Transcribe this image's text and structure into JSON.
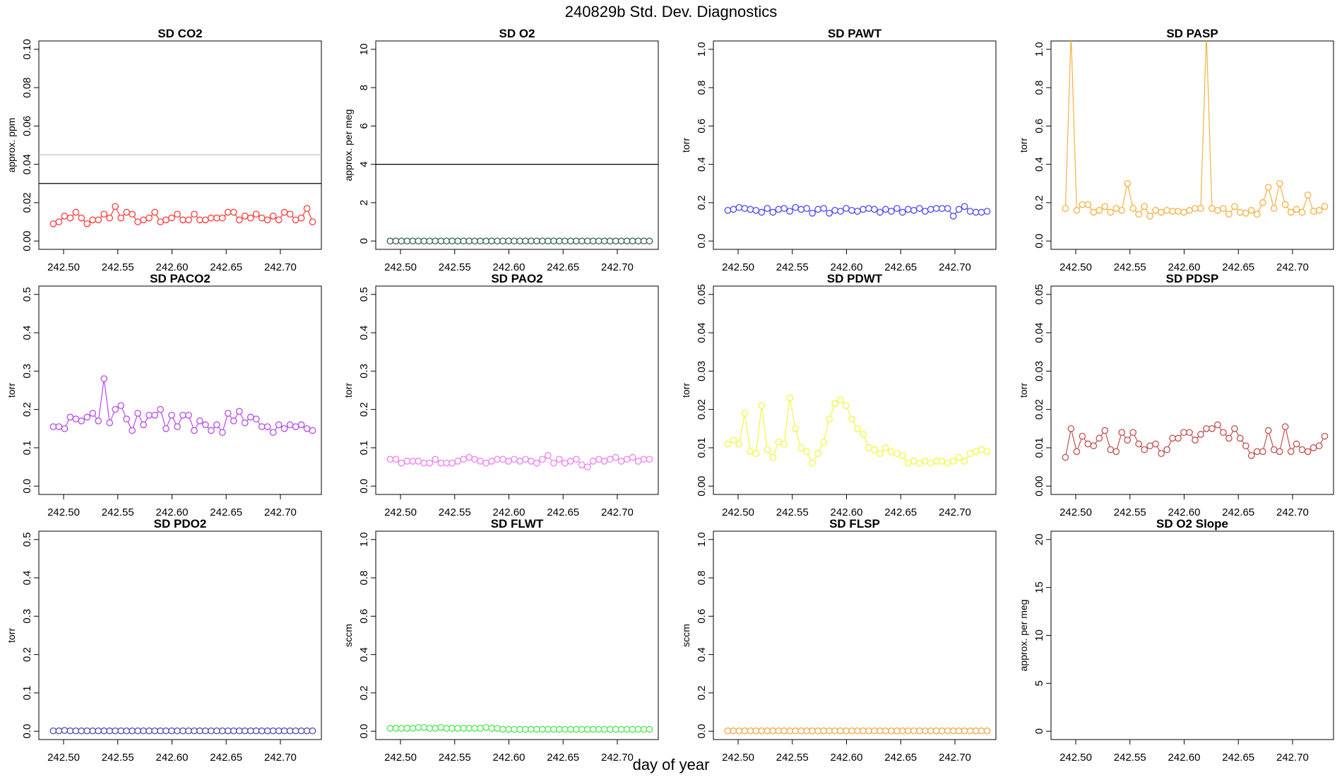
{
  "page": {
    "title": "240829b   Std. Dev. Diagnostics",
    "xlabel": "day of year"
  },
  "chart_data": [
    {
      "type": "scatter",
      "title": "SD CO2",
      "ylabel": "approx. ppm",
      "xlim": [
        242.485,
        242.73
      ],
      "ylim": [
        0,
        0.1
      ],
      "yticks": [
        "0.00",
        "0.02",
        "0.04",
        "0.06",
        "0.08",
        "0.10"
      ],
      "xticks": [
        "242.50",
        "242.55",
        "242.60",
        "242.65",
        "242.70"
      ],
      "color": "#ff3b3b",
      "connected": true,
      "hlines": [
        {
          "y": 0.03,
          "color": "#000000"
        },
        {
          "y": 0.045,
          "color": "#bbbbbb"
        }
      ],
      "values": [
        0.009,
        0.01,
        0.013,
        0.012,
        0.015,
        0.012,
        0.009,
        0.011,
        0.011,
        0.014,
        0.012,
        0.018,
        0.012,
        0.015,
        0.014,
        0.01,
        0.011,
        0.012,
        0.015,
        0.01,
        0.011,
        0.012,
        0.014,
        0.011,
        0.011,
        0.014,
        0.011,
        0.011,
        0.012,
        0.012,
        0.012,
        0.015,
        0.015,
        0.011,
        0.013,
        0.012,
        0.014,
        0.012,
        0.011,
        0.013,
        0.011,
        0.015,
        0.014,
        0.011,
        0.012,
        0.017,
        0.01
      ]
    },
    {
      "type": "scatter",
      "title": "SD O2",
      "ylabel": "approx. per meg",
      "xlim": [
        242.485,
        242.73
      ],
      "ylim": [
        0,
        10
      ],
      "yticks": [
        "0",
        "2",
        "4",
        "6",
        "8",
        "10"
      ],
      "xticks": [
        "242.50",
        "242.55",
        "242.60",
        "242.65",
        "242.70"
      ],
      "color": "#2f5f4a",
      "connected": true,
      "hlines": [
        {
          "y": 4,
          "color": "#000000"
        }
      ],
      "values": [
        0,
        0,
        0,
        0,
        0,
        0,
        0,
        0,
        0,
        0,
        0,
        0,
        0,
        0,
        0,
        0,
        0,
        0,
        0,
        0,
        0,
        0,
        0,
        0,
        0,
        0,
        0,
        0,
        0,
        0,
        0,
        0,
        0,
        0,
        0,
        0,
        0,
        0,
        0,
        0,
        0,
        0,
        0,
        0,
        0,
        0,
        0
      ]
    },
    {
      "type": "scatter",
      "title": "SD PAWT",
      "ylabel": "torr",
      "xlim": [
        242.485,
        242.73
      ],
      "ylim": [
        0,
        1
      ],
      "yticks": [
        "0.0",
        "0.2",
        "0.4",
        "0.6",
        "0.8",
        "1.0"
      ],
      "xticks": [
        "242.50",
        "242.55",
        "242.60",
        "242.65",
        "242.70"
      ],
      "color": "#4a4af0",
      "connected": true,
      "hlines": [],
      "values": [
        0.16,
        0.165,
        0.175,
        0.17,
        0.165,
        0.16,
        0.15,
        0.17,
        0.15,
        0.165,
        0.17,
        0.155,
        0.175,
        0.165,
        0.17,
        0.145,
        0.165,
        0.17,
        0.145,
        0.16,
        0.155,
        0.17,
        0.16,
        0.155,
        0.165,
        0.17,
        0.165,
        0.15,
        0.165,
        0.155,
        0.17,
        0.15,
        0.165,
        0.16,
        0.17,
        0.155,
        0.165,
        0.17,
        0.17,
        0.17,
        0.13,
        0.165,
        0.18,
        0.155,
        0.15,
        0.15,
        0.155
      ]
    },
    {
      "type": "scatter",
      "title": "SD PASP",
      "ylabel": "torr",
      "xlim": [
        242.485,
        242.73
      ],
      "ylim": [
        0,
        1
      ],
      "yticks": [
        "0.0",
        "0.2",
        "0.4",
        "0.6",
        "0.8",
        "1.0"
      ],
      "xticks": [
        "242.50",
        "242.55",
        "242.60",
        "242.65",
        "242.70"
      ],
      "color": "#f5b041",
      "connected": true,
      "hlines": [],
      "values": [
        0.17,
        1.1,
        0.16,
        0.19,
        0.19,
        0.15,
        0.16,
        0.18,
        0.15,
        0.17,
        0.16,
        0.3,
        0.17,
        0.14,
        0.18,
        0.13,
        0.16,
        0.15,
        0.16,
        0.155,
        0.155,
        0.15,
        0.16,
        0.17,
        0.17,
        1.1,
        0.17,
        0.16,
        0.17,
        0.14,
        0.18,
        0.15,
        0.145,
        0.16,
        0.14,
        0.2,
        0.28,
        0.17,
        0.3,
        0.19,
        0.15,
        0.165,
        0.15,
        0.24,
        0.155,
        0.16,
        0.18
      ]
    },
    {
      "type": "scatter",
      "title": "SD PACO2",
      "ylabel": "torr",
      "xlim": [
        242.485,
        242.73
      ],
      "ylim": [
        0,
        0.5
      ],
      "yticks": [
        "0.0",
        "0.1",
        "0.2",
        "0.3",
        "0.4",
        "0.5"
      ],
      "xticks": [
        "242.50",
        "242.55",
        "242.60",
        "242.65",
        "242.70"
      ],
      "color": "#b64ae8",
      "connected": true,
      "hlines": [],
      "values": [
        0.155,
        0.155,
        0.15,
        0.18,
        0.175,
        0.17,
        0.18,
        0.19,
        0.17,
        0.28,
        0.165,
        0.2,
        0.21,
        0.175,
        0.145,
        0.19,
        0.16,
        0.185,
        0.185,
        0.2,
        0.15,
        0.185,
        0.155,
        0.185,
        0.185,
        0.145,
        0.17,
        0.16,
        0.145,
        0.16,
        0.14,
        0.19,
        0.17,
        0.195,
        0.165,
        0.18,
        0.175,
        0.155,
        0.155,
        0.14,
        0.16,
        0.15,
        0.16,
        0.155,
        0.16,
        0.15,
        0.145
      ]
    },
    {
      "type": "scatter",
      "title": "SD PAO2",
      "ylabel": "torr",
      "xlim": [
        242.485,
        242.73
      ],
      "ylim": [
        0,
        0.5
      ],
      "yticks": [
        "0.0",
        "0.1",
        "0.2",
        "0.3",
        "0.4",
        "0.5"
      ],
      "xticks": [
        "242.50",
        "242.55",
        "242.60",
        "242.65",
        "242.70"
      ],
      "color": "#f07ef0",
      "connected": true,
      "hlines": [],
      "values": [
        0.07,
        0.07,
        0.06,
        0.065,
        0.065,
        0.065,
        0.06,
        0.06,
        0.07,
        0.06,
        0.06,
        0.06,
        0.065,
        0.07,
        0.075,
        0.07,
        0.065,
        0.06,
        0.065,
        0.07,
        0.07,
        0.065,
        0.07,
        0.065,
        0.07,
        0.065,
        0.06,
        0.07,
        0.08,
        0.06,
        0.07,
        0.06,
        0.065,
        0.07,
        0.055,
        0.05,
        0.065,
        0.07,
        0.065,
        0.07,
        0.075,
        0.065,
        0.07,
        0.075,
        0.065,
        0.07,
        0.07
      ]
    },
    {
      "type": "scatter",
      "title": "SD PDWT",
      "ylabel": "torr",
      "xlim": [
        242.485,
        242.73
      ],
      "ylim": [
        0,
        0.05
      ],
      "yticks": [
        "0.00",
        "0.01",
        "0.02",
        "0.03",
        "0.04",
        "0.05"
      ],
      "xticks": [
        "242.50",
        "242.55",
        "242.60",
        "242.65",
        "242.70"
      ],
      "color": "#f5f542",
      "connected": true,
      "hlines": [],
      "values": [
        0.011,
        0.012,
        0.011,
        0.019,
        0.009,
        0.0085,
        0.021,
        0.0095,
        0.0075,
        0.0115,
        0.011,
        0.023,
        0.015,
        0.01,
        0.009,
        0.006,
        0.0085,
        0.0115,
        0.0175,
        0.0215,
        0.0225,
        0.021,
        0.0175,
        0.015,
        0.0135,
        0.01,
        0.0095,
        0.0085,
        0.01,
        0.009,
        0.0085,
        0.008,
        0.006,
        0.0065,
        0.006,
        0.0065,
        0.006,
        0.0065,
        0.0065,
        0.006,
        0.0065,
        0.0075,
        0.0065,
        0.0085,
        0.009,
        0.0095,
        0.009
      ]
    },
    {
      "type": "scatter",
      "title": "SD PDSP",
      "ylabel": "torr",
      "xlim": [
        242.485,
        242.73
      ],
      "ylim": [
        0,
        0.05
      ],
      "yticks": [
        "0.00",
        "0.01",
        "0.02",
        "0.03",
        "0.04",
        "0.05"
      ],
      "xticks": [
        "242.50",
        "242.55",
        "242.60",
        "242.65",
        "242.70"
      ],
      "color": "#c0504d",
      "connected": true,
      "hlines": [],
      "values": [
        0.0075,
        0.015,
        0.009,
        0.013,
        0.011,
        0.0105,
        0.0125,
        0.0145,
        0.0095,
        0.009,
        0.014,
        0.012,
        0.014,
        0.011,
        0.0095,
        0.0105,
        0.011,
        0.0085,
        0.0095,
        0.0125,
        0.0125,
        0.014,
        0.014,
        0.012,
        0.0135,
        0.015,
        0.015,
        0.016,
        0.014,
        0.0125,
        0.015,
        0.0125,
        0.0105,
        0.008,
        0.009,
        0.009,
        0.0145,
        0.0095,
        0.009,
        0.0155,
        0.009,
        0.011,
        0.0095,
        0.009,
        0.01,
        0.0105,
        0.013
      ]
    },
    {
      "type": "scatter",
      "title": "SD PDO2",
      "ylabel": "torr",
      "xlim": [
        242.485,
        242.73
      ],
      "ylim": [
        0,
        0.5
      ],
      "yticks": [
        "0.0",
        "0.1",
        "0.2",
        "0.3",
        "0.4",
        "0.5"
      ],
      "xticks": [
        "242.50",
        "242.55",
        "242.60",
        "242.65",
        "242.70"
      ],
      "color": "#4a4ab0",
      "connected": true,
      "hlines": [],
      "values": [
        0.001,
        0.001,
        0.002,
        0.001,
        0.001,
        0.001,
        0.001,
        0.001,
        0.001,
        0.001,
        0.001,
        0.001,
        0.001,
        0.001,
        0.001,
        0.001,
        0.001,
        0.001,
        0.001,
        0.001,
        0.001,
        0.001,
        0.001,
        0.001,
        0.001,
        0.001,
        0.001,
        0.001,
        0.001,
        0.001,
        0.001,
        0.001,
        0.001,
        0.001,
        0.001,
        0.001,
        0.001,
        0.001,
        0.001,
        0.001,
        0.001,
        0.001,
        0.001,
        0.001,
        0.001,
        0.001,
        0.001
      ]
    },
    {
      "type": "scatter",
      "title": "SD FLWT",
      "ylabel": "sccm",
      "xlim": [
        242.485,
        242.73
      ],
      "ylim": [
        0,
        1
      ],
      "yticks": [
        "0.0",
        "0.2",
        "0.4",
        "0.6",
        "0.8",
        "1.0"
      ],
      "xticks": [
        "242.50",
        "242.55",
        "242.60",
        "242.65",
        "242.70"
      ],
      "color": "#4ae84a",
      "connected": true,
      "hlines": [],
      "values": [
        0.015,
        0.015,
        0.015,
        0.015,
        0.015,
        0.02,
        0.02,
        0.015,
        0.015,
        0.02,
        0.015,
        0.015,
        0.015,
        0.015,
        0.015,
        0.015,
        0.015,
        0.02,
        0.015,
        0.015,
        0.01,
        0.01,
        0.01,
        0.01,
        0.01,
        0.01,
        0.01,
        0.01,
        0.01,
        0.01,
        0.01,
        0.01,
        0.01,
        0.01,
        0.01,
        0.01,
        0.01,
        0.01,
        0.01,
        0.01,
        0.01,
        0.01,
        0.01,
        0.01,
        0.01,
        0.01,
        0.01
      ]
    },
    {
      "type": "scatter",
      "title": "SD FLSP",
      "ylabel": "sccm",
      "xlim": [
        242.485,
        242.73
      ],
      "ylim": [
        0,
        1
      ],
      "yticks": [
        "0.0",
        "0.2",
        "0.4",
        "0.6",
        "0.8",
        "1.0"
      ],
      "xticks": [
        "242.50",
        "242.55",
        "242.60",
        "242.65",
        "242.70"
      ],
      "color": "#f5a540",
      "connected": true,
      "hlines": [],
      "values": [
        0.002,
        0.002,
        0.002,
        0.002,
        0.002,
        0.002,
        0.002,
        0.002,
        0.002,
        0.002,
        0.002,
        0.002,
        0.002,
        0.002,
        0.002,
        0.002,
        0.002,
        0.002,
        0.002,
        0.002,
        0.002,
        0.002,
        0.002,
        0.002,
        0.002,
        0.002,
        0.002,
        0.002,
        0.002,
        0.002,
        0.002,
        0.002,
        0.002,
        0.002,
        0.002,
        0.002,
        0.002,
        0.002,
        0.002,
        0.002,
        0.002,
        0.002,
        0.002,
        0.002,
        0.002,
        0.002,
        0.002
      ]
    },
    {
      "type": "scatter",
      "title": "SD O2 Slope",
      "ylabel": "approx. per meg",
      "xlim": [
        242.485,
        242.73
      ],
      "ylim": [
        0,
        20
      ],
      "yticks": [
        "0",
        "5",
        "10",
        "15",
        "20"
      ],
      "xticks": [
        "242.50",
        "242.55",
        "242.60",
        "242.65",
        "242.70"
      ],
      "color": "#000000",
      "connected": false,
      "hlines": [],
      "values": []
    }
  ]
}
